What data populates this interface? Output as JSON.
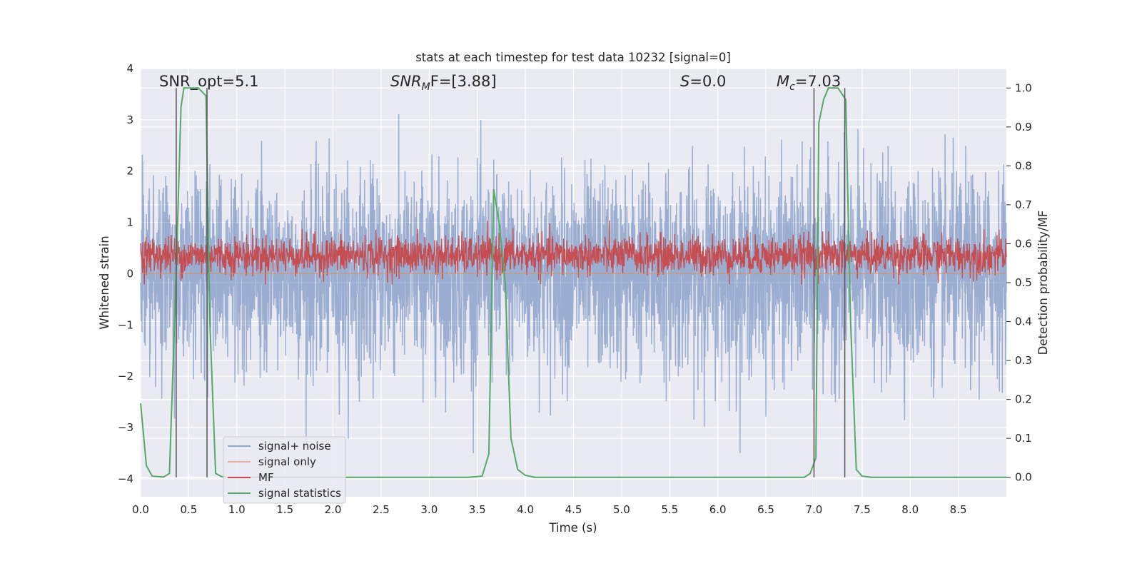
{
  "chart_data": {
    "type": "line",
    "title": "stats at each timestep for test data 10232 [signal=0]",
    "xlabel": "Time (s)",
    "ylabel": "Whitened strain",
    "y2label": "Detection probability/MF",
    "xlim": [
      0.0,
      9.0
    ],
    "ylim": [
      -4.35,
      4.0
    ],
    "y2lim": [
      -0.05,
      1.05
    ],
    "x_ticks": [
      "0.0",
      "0.5",
      "1.0",
      "1.5",
      "2.0",
      "2.5",
      "3.0",
      "3.5",
      "4.0",
      "4.5",
      "5.0",
      "5.5",
      "6.0",
      "6.5",
      "7.0",
      "7.5",
      "8.0",
      "8.5"
    ],
    "y_ticks": [
      "4",
      "3",
      "2",
      "1",
      "0",
      "−1",
      "−2",
      "−3",
      "−4"
    ],
    "y2_ticks": [
      "1.0",
      "0.9",
      "0.8",
      "0.7",
      "0.6",
      "0.5",
      "0.4",
      "0.3",
      "0.2",
      "0.1",
      "0.0"
    ],
    "grid": true,
    "legend_position": "lower-left",
    "annotations": {
      "snr_opt": "SNR_opt=5.1",
      "snr_mf_base": "SNR",
      "snr_mf_sub": "M",
      "snr_mf_rest": "F=[3.88]",
      "s_base": "S",
      "s_rest": "=0.0",
      "mc_base": "M",
      "mc_sub": "c",
      "mc_rest": "=7.03"
    },
    "vertical_lines_x": [
      0.37,
      0.69,
      7.0,
      7.32
    ],
    "series": [
      {
        "name": "signal+ noise",
        "color": "#4c72b0",
        "axis": "left",
        "envelope_min": -3.5,
        "envelope_max": 3.6
      },
      {
        "name": "signal only",
        "color": "#dd8452",
        "axis": "left",
        "constant_value": 0.0
      },
      {
        "name": "MF",
        "color": "#c44e52",
        "axis": "right",
        "band_min": 0.52,
        "band_max": 0.62
      },
      {
        "name": "signal statistics",
        "color": "#55a868",
        "axis": "right",
        "x": [
          0.0,
          0.06,
          0.12,
          0.24,
          0.3,
          0.36,
          0.42,
          0.45,
          0.6,
          0.68,
          0.72,
          0.78,
          0.84,
          0.9,
          1.2,
          2.0,
          3.0,
          3.4,
          3.55,
          3.62,
          3.67,
          3.73,
          3.79,
          3.85,
          3.92,
          4.0,
          4.1,
          5.0,
          6.0,
          6.9,
          6.96,
          7.02,
          7.05,
          7.1,
          7.15,
          7.25,
          7.33,
          7.38,
          7.44,
          7.5,
          7.6,
          8.0,
          9.0
        ],
        "y": [
          0.19,
          0.03,
          0.003,
          0.001,
          0.01,
          0.45,
          0.95,
          1.0,
          1.0,
          0.98,
          0.4,
          0.01,
          0.002,
          0.0,
          0.0,
          0.0,
          0.0,
          0.0,
          0.003,
          0.06,
          0.74,
          0.65,
          0.5,
          0.1,
          0.02,
          0.005,
          0.0,
          0.0,
          0.0,
          0.0,
          0.01,
          0.05,
          0.91,
          0.97,
          1.0,
          1.0,
          0.97,
          0.4,
          0.02,
          0.003,
          0.0,
          0.0,
          0.0
        ]
      }
    ]
  }
}
